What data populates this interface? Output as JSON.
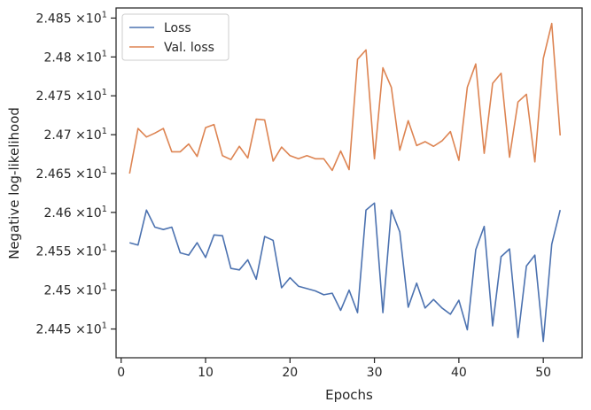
{
  "chart_data": {
    "type": "line",
    "xlabel": "Epochs",
    "ylabel": "Negative log-likelihood",
    "xlim": [
      -0.6,
      54.6
    ],
    "ylim": [
      24.413,
      24.863
    ],
    "xticks": [
      0,
      10,
      20,
      30,
      40,
      50
    ],
    "xtick_labels": [
      "0",
      "10",
      "20",
      "30",
      "40",
      "50"
    ],
    "yticks": [
      24.45,
      24.5,
      24.55,
      24.6,
      24.65,
      24.7,
      24.75,
      24.8,
      24.85
    ],
    "ytick_labels": [
      {
        "mantissa": "2.445",
        "exp": "1"
      },
      {
        "mantissa": "2.45",
        "exp": "1"
      },
      {
        "mantissa": "2.455",
        "exp": "1"
      },
      {
        "mantissa": "2.46",
        "exp": "1"
      },
      {
        "mantissa": "2.465",
        "exp": "1"
      },
      {
        "mantissa": "2.47",
        "exp": "1"
      },
      {
        "mantissa": "2.475",
        "exp": "1"
      },
      {
        "mantissa": "2.48",
        "exp": "1"
      },
      {
        "mantissa": "2.485",
        "exp": "1"
      }
    ],
    "ytick_times": "×10",
    "grid": false,
    "legend_position": "top-left",
    "x": [
      1,
      2,
      3,
      4,
      5,
      6,
      7,
      8,
      9,
      10,
      11,
      12,
      13,
      14,
      15,
      16,
      17,
      18,
      19,
      20,
      21,
      22,
      23,
      24,
      25,
      26,
      27,
      28,
      29,
      30,
      31,
      32,
      33,
      34,
      35,
      36,
      37,
      38,
      39,
      40,
      41,
      42,
      43,
      44,
      45,
      46,
      47,
      48,
      49,
      50,
      51,
      52
    ],
    "series": [
      {
        "name": "Loss",
        "color": "#4c72b0",
        "values": [
          24.561,
          24.558,
          24.603,
          24.581,
          24.578,
          24.581,
          24.548,
          24.545,
          24.561,
          24.542,
          24.571,
          24.57,
          24.528,
          24.526,
          24.539,
          24.514,
          24.569,
          24.564,
          24.503,
          24.516,
          24.505,
          24.502,
          24.499,
          24.494,
          24.496,
          24.474,
          24.5,
          24.471,
          24.603,
          24.612,
          24.471,
          24.603,
          24.575,
          24.478,
          24.509,
          24.477,
          24.488,
          24.477,
          24.469,
          24.487,
          24.449,
          24.552,
          24.582,
          24.454,
          24.543,
          24.553,
          24.439,
          24.531,
          24.545,
          24.434,
          24.559,
          24.603
        ]
      },
      {
        "name": "Val. loss",
        "color": "#dd8452",
        "values": [
          24.65,
          24.708,
          24.697,
          24.702,
          24.708,
          24.678,
          24.678,
          24.688,
          24.672,
          24.709,
          24.713,
          24.673,
          24.668,
          24.685,
          24.67,
          24.72,
          24.719,
          24.666,
          24.684,
          24.673,
          24.669,
          24.673,
          24.669,
          24.669,
          24.654,
          24.679,
          24.655,
          24.797,
          24.809,
          24.669,
          24.786,
          24.761,
          24.68,
          24.718,
          24.686,
          24.691,
          24.685,
          24.692,
          24.704,
          24.667,
          24.761,
          24.791,
          24.676,
          24.766,
          24.779,
          24.671,
          24.742,
          24.752,
          24.665,
          24.798,
          24.843,
          24.699
        ]
      }
    ]
  }
}
